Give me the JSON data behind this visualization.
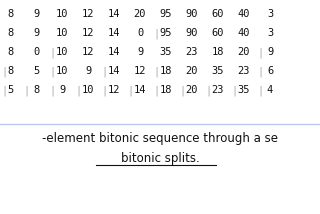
{
  "grid": [
    {
      "nums": [
        8,
        9,
        10,
        12,
        14,
        20,
        95,
        90,
        60,
        40,
        3
      ],
      "pre_bar": false,
      "divs": []
    },
    {
      "nums": [
        8,
        9,
        10,
        12,
        14,
        0,
        95,
        90,
        60,
        40,
        3
      ],
      "pre_bar": false,
      "divs": [
        5
      ]
    },
    {
      "nums": [
        8,
        0,
        10,
        12,
        14,
        9,
        35,
        23,
        18,
        20,
        9
      ],
      "pre_bar": false,
      "divs": [
        1,
        9
      ]
    },
    {
      "nums": [
        8,
        5,
        10,
        9,
        14,
        12,
        18,
        20,
        35,
        23,
        6
      ],
      "pre_bar": true,
      "divs": [
        1,
        3,
        5,
        9
      ]
    },
    {
      "nums": [
        5,
        8,
        9,
        10,
        12,
        14,
        18,
        20,
        23,
        35,
        4
      ],
      "pre_bar": true,
      "divs": [
        0,
        1,
        2,
        3,
        4,
        5,
        6,
        7,
        8,
        9
      ]
    }
  ],
  "caption1": "-element bitonic sequence through a se",
  "caption2": "bitonic splits.",
  "bg": "#ffffff",
  "fg": "#111111",
  "div_color": "#aaaaaa",
  "num_fs": 7.5,
  "cap_fs": 8.5,
  "sep_color": "#aaccff"
}
